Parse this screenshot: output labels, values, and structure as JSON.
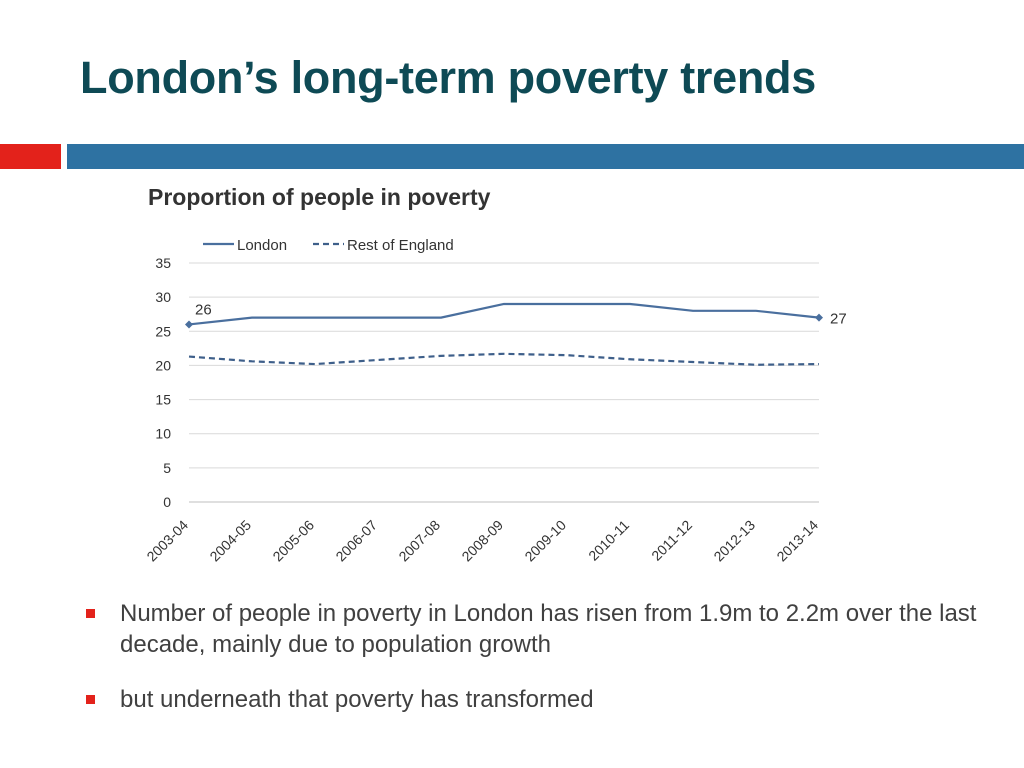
{
  "slide": {
    "title": "London’s long-term poverty trends"
  },
  "accent_colors": {
    "red": "#e3221b",
    "blue": "#2e72a2",
    "title": "#0e4a55"
  },
  "chart_data": {
    "type": "line",
    "title": "Proportion of people in poverty",
    "xlabel": "",
    "ylabel": "",
    "categories": [
      "2003-04",
      "2004-05",
      "2005-06",
      "2006-07",
      "2007-08",
      "2008-09",
      "2009-10",
      "2010-11",
      "2011-12",
      "2012-13",
      "2013-14"
    ],
    "ylim": [
      0,
      35
    ],
    "yticks": [
      0,
      5,
      10,
      15,
      20,
      25,
      30,
      35
    ],
    "grid": true,
    "legend_position": "top",
    "series": [
      {
        "name": "London",
        "style": "solid",
        "color": "#4a6f9e",
        "values": [
          26,
          27,
          27,
          27,
          27,
          29,
          29,
          29,
          28,
          28,
          27
        ]
      },
      {
        "name": "Rest of England",
        "style": "dashed",
        "color": "#3e5f8a",
        "values": [
          21.3,
          20.6,
          20.2,
          20.8,
          21.4,
          21.7,
          21.5,
          20.9,
          20.5,
          20.1,
          20.2
        ]
      }
    ],
    "annotations": [
      {
        "series": "London",
        "category": "2003-04",
        "text": "26"
      },
      {
        "series": "London",
        "category": "2013-14",
        "text": "27"
      }
    ]
  },
  "bullets": [
    "Number of people in poverty in London has risen from 1.9m to 2.2m over the last decade, mainly due to population growth",
    "but underneath that poverty has transformed"
  ]
}
